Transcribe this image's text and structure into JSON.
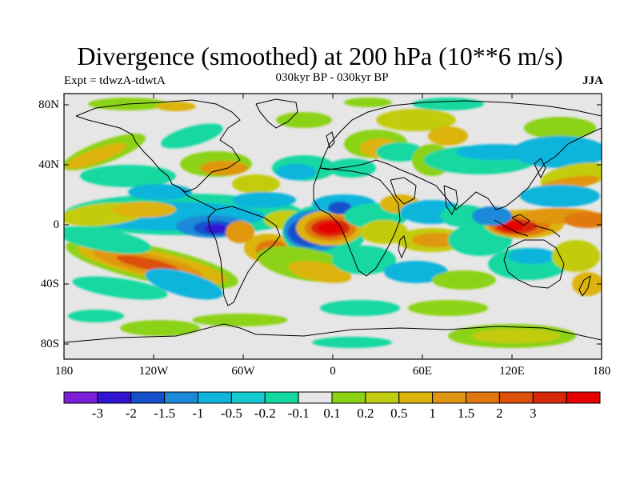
{
  "title": "Divergence (smoothed) at 200 hPa (10**6 m/s)",
  "expt": "Expt = tdwzA-tdwtA",
  "period": "030kyr BP - 030kyr BP",
  "season": "JJA",
  "lat_labels": [
    "80N",
    "40N",
    "0",
    "40S",
    "80S"
  ],
  "lon_labels": [
    "180",
    "120W",
    "60W",
    "0",
    "60E",
    "120E",
    "180"
  ],
  "colorbar": {
    "colors": [
      "#7b1fd8",
      "#3214d2",
      "#1450cc",
      "#1a8ad8",
      "#10b4dc",
      "#13cad0",
      "#14d8a0",
      "#e6e6e6",
      "#8cd214",
      "#c2cc10",
      "#dcb40a",
      "#e09610",
      "#e07810",
      "#dc500a",
      "#d8280a",
      "#e60000"
    ],
    "labels": [
      "-3",
      "-2",
      "-1.5",
      "-1",
      "-0.5",
      "-0.2",
      "-0.1",
      "0.1",
      "0.2",
      "0.5",
      "1",
      "1.5",
      "2",
      "3"
    ]
  },
  "field_colors": {
    "missing": "#e6e6e6",
    "neg1": "#14d8a0",
    "neg2": "#10b4dc",
    "neg3": "#1a8ad8",
    "neg4": "#1450cc",
    "neg5": "#3214d2",
    "pos1": "#8cd214",
    "pos2": "#c2cc10",
    "pos3": "#dcb40a",
    "pos4": "#e09610",
    "pos5": "#e07810",
    "pos6": "#dc500a",
    "pos7": "#d8280a",
    "pos8": "#e60000"
  }
}
